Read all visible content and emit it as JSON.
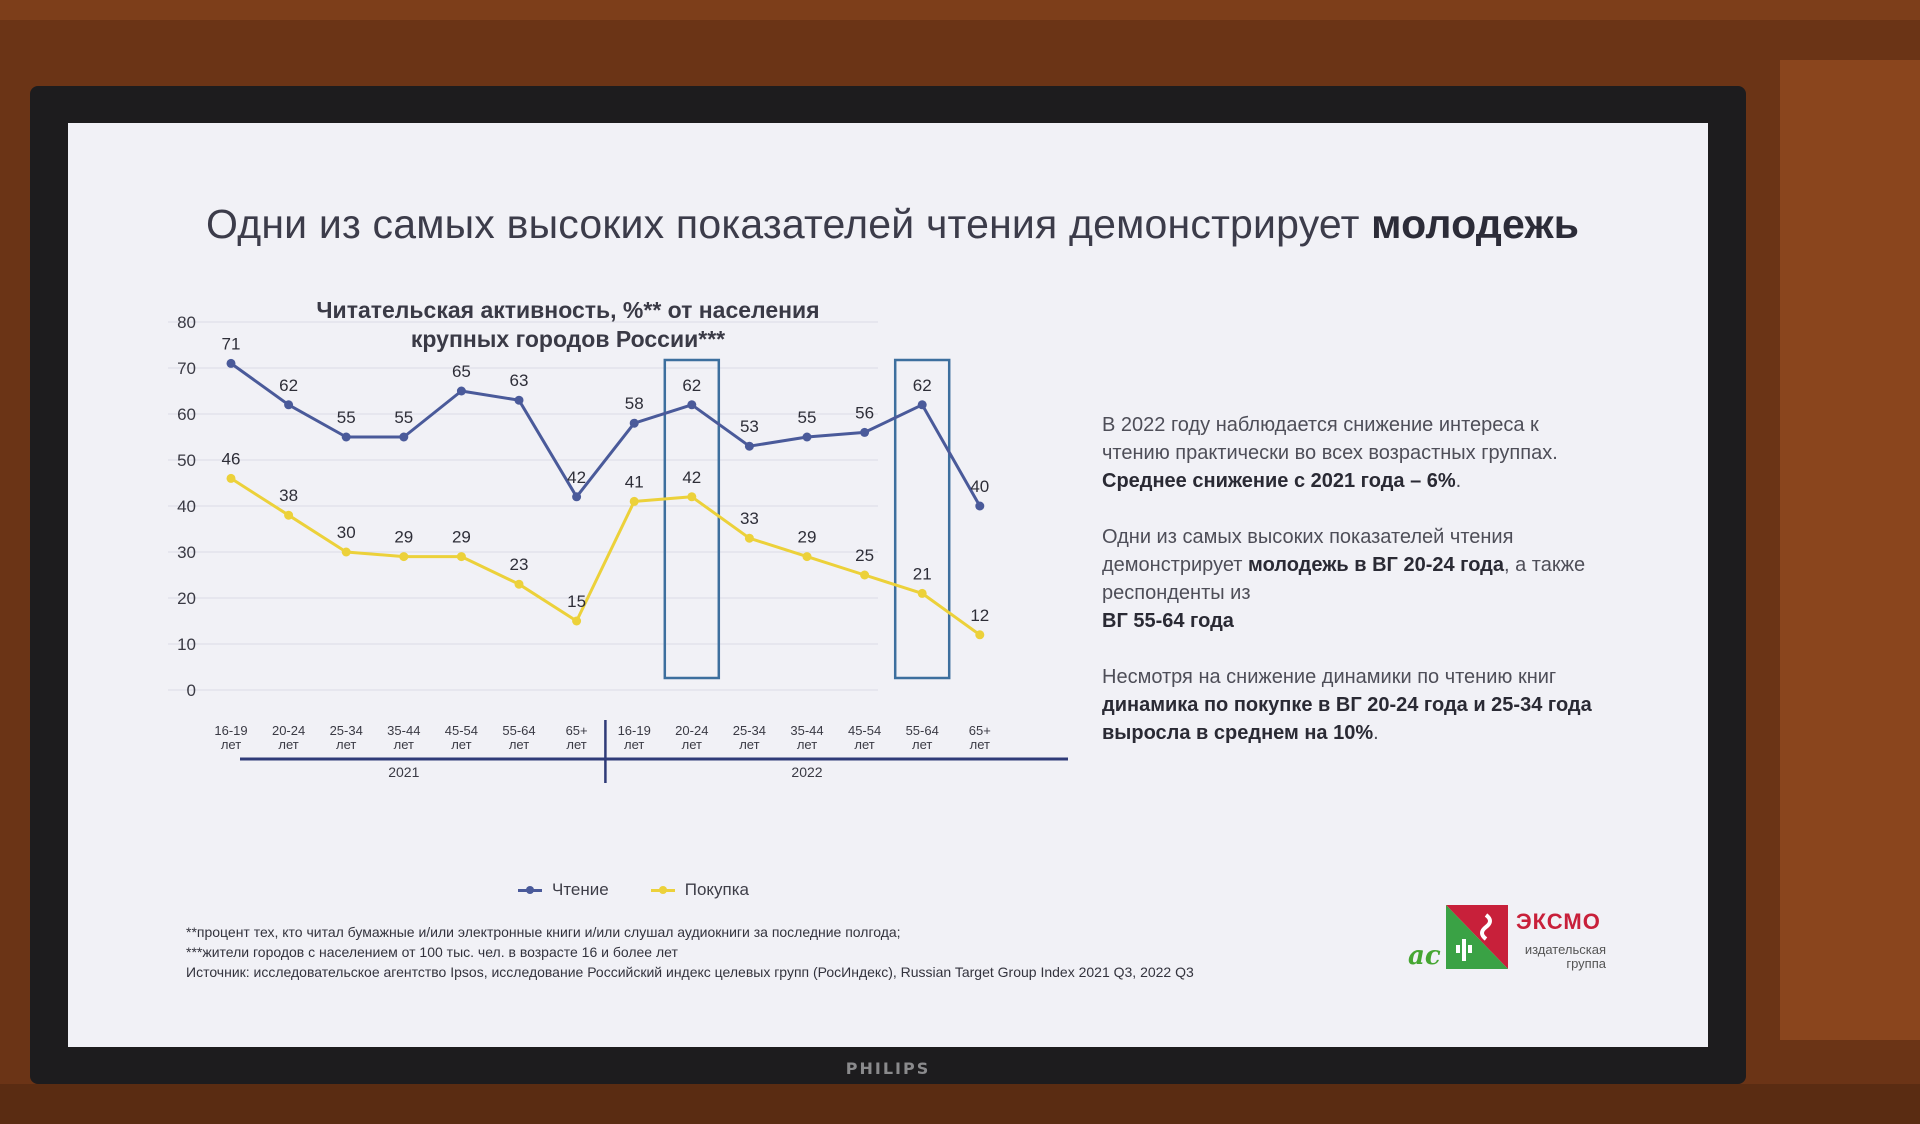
{
  "slide": {
    "title_regular": "Одни из самых высоких показателей чтения демонстрирует",
    "title_bold": "молодежь"
  },
  "info": {
    "p1_regular": "В 2022 году наблюдается снижение интереса к чтению практически во всех возрастных группах.",
    "p1_bold": "Среднее снижение с 2021 года – 6%",
    "p1_end": ".",
    "p2_regular": "Одни из самых высоких показателей чтения демонстрирует",
    "p2_bold": "молодежь в ВГ 20-24 года",
    "p2_mid": ", а также респонденты из",
    "p2_bold2": "ВГ 55-64 года",
    "p3_regular": "Несмотря на снижение динамики по чтению книг",
    "p3_bold": "динамика по покупке в ВГ 20-24 года и 25-34 года выросла в среднем на 10%",
    "p3_end": "."
  },
  "footnotes": {
    "line1": "**процент тех, кто читал бумажные и/или электронные книги и/или слушал аудиокниги за последние полгода;",
    "line2": "***жители городов с населением от 100 тыс. чел. в возрасте 16 и более лет",
    "line3": "Источник: исследовательское агентство Ipsos, исследование Российский индекс целевых групп (РосИндекс), Russian Target Group Index 2021 Q3, 2022 Q3"
  },
  "logo": {
    "ac": "ас",
    "name": "ЭКСМО",
    "subtitle": "издательская группа"
  },
  "monitor": {
    "brand": "PHILIPS"
  },
  "colors": {
    "reading": "#4a5a9a",
    "buying": "#ecd13a",
    "highlight": "#3d6f9e"
  },
  "chart_data": {
    "type": "line",
    "title": "Читательская активность, %** от населения крупных городов России***",
    "ylim": [
      0,
      80
    ],
    "yticks": [
      0,
      10,
      20,
      30,
      40,
      50,
      60,
      70,
      80
    ],
    "grid": true,
    "legend_position": "bottom",
    "categories": [
      "16-19 лет",
      "20-24 лет",
      "25-34 лет",
      "35-44 лет",
      "45-54 лет",
      "55-64 лет",
      "65+ лет",
      "16-19 лет",
      "20-24 лет",
      "25-34 лет",
      "35-44 лет",
      "45-54 лет",
      "55-64 лет",
      "65+ лет"
    ],
    "category_top": [
      "16-19",
      "20-24",
      "25-34",
      "35-44",
      "45-54",
      "55-64",
      "65+",
      "16-19",
      "20-24",
      "25-34",
      "35-44",
      "45-54",
      "55-64",
      "65+"
    ],
    "category_bottom": [
      "лет",
      "лет",
      "лет",
      "лет",
      "лет",
      "лет",
      "лет",
      "лет",
      "лет",
      "лет",
      "лет",
      "лет",
      "лет",
      "лет"
    ],
    "groups": [
      {
        "label": "2021",
        "from": 0,
        "to": 6
      },
      {
        "label": "2022",
        "from": 7,
        "to": 13
      }
    ],
    "highlighted_categories": [
      8,
      12
    ],
    "series": [
      {
        "name": "Чтение",
        "values": [
          71,
          62,
          55,
          55,
          65,
          63,
          42,
          58,
          62,
          53,
          55,
          56,
          62,
          40
        ]
      },
      {
        "name": "Покупка",
        "values": [
          46,
          38,
          30,
          29,
          29,
          23,
          15,
          41,
          42,
          33,
          29,
          25,
          21,
          12
        ]
      }
    ]
  }
}
